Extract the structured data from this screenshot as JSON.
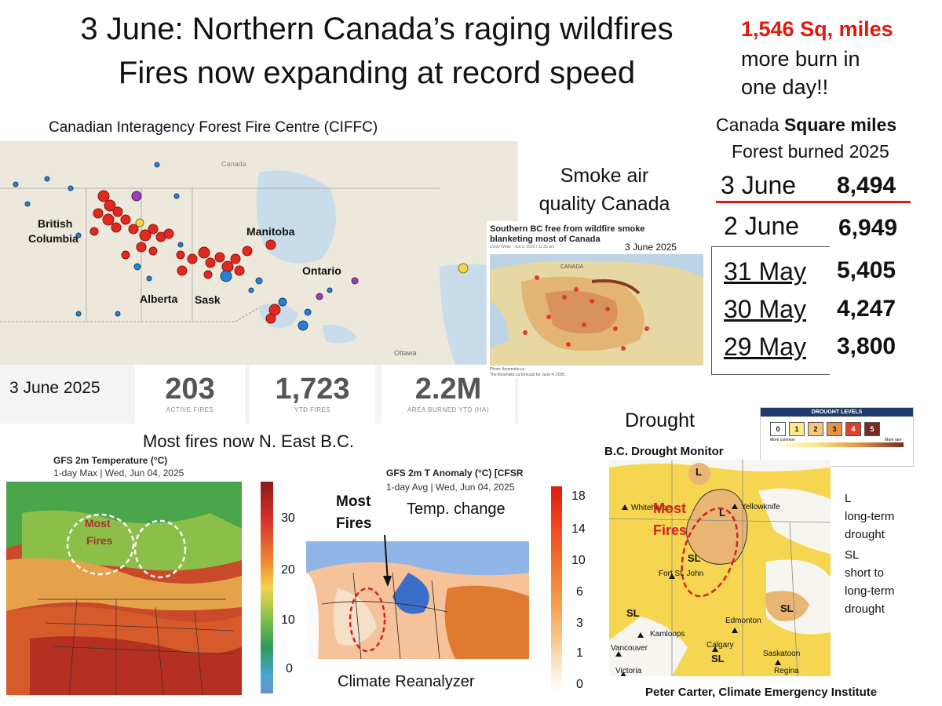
{
  "title": {
    "line1": "3 June: Northern Canada’s raging wildfires",
    "line2": "Fires now expanding at record speed"
  },
  "highlight": {
    "value": "1,546 Sq, miles",
    "line1": "more burn in",
    "line2": "one day!!"
  },
  "ciffc": {
    "caption": "Canadian Interagency Forest Fire Centre  (CIFFC)",
    "map_labels": {
      "canada": "Canada",
      "british": "British",
      "columbia": "Columbia",
      "manitoba": "Manitoba",
      "ontario": "Ontario",
      "alberta": "Alberta",
      "sask": "Sask",
      "ottawa": "Ottawa"
    },
    "date": "3 June 2025",
    "stats": [
      {
        "value": "203",
        "label": "ACTIVE FIRES"
      },
      {
        "value": "1,723",
        "label": "YTD FIRES"
      },
      {
        "value": "2.2M",
        "label": "AREA BURNED YTD (HA)"
      }
    ]
  },
  "smoke": {
    "caption_line1": "Smoke air",
    "caption_line2": "quality Canada",
    "headline": "Southern BC free from wildfire smoke blanketing most of Canada",
    "byline": "Cindy White · Jun 3, 2025 / 11:35 am",
    "date": "3 June 2025",
    "map_label": "CANADA",
    "credit1": "Photo: firesmoke.ca",
    "credit2": "The firesmoke.ca forecast for June 4, 2025."
  },
  "burned": {
    "header_prefix": "Canada ",
    "header_bold": "Square miles",
    "subheader": "Forest burned  2025",
    "rows": [
      {
        "date": "3 June",
        "value": "8,494"
      },
      {
        "date": "2 June",
        "value": "6,949"
      },
      {
        "date": "31 May",
        "value": "5,405"
      },
      {
        "date": "30 May",
        "value": "4,247"
      },
      {
        "date": "29 May",
        "value": "3,800"
      }
    ]
  },
  "temperature": {
    "caption": "Most fires now N. East B.C.",
    "map_title": "GFS 2m Temperature (°C)",
    "map_subtitle": "1-day Max | Wed, Jun 04, 2025",
    "annotation_line1": "Most",
    "annotation_line2": "Fires",
    "scale_ticks": [
      "30",
      "20",
      "10",
      "0"
    ]
  },
  "anomaly": {
    "map_title": "GFS 2m T Anomaly (°C) [CFSR",
    "map_subtitle": "1-day Avg | Wed, Jun 04, 2025",
    "annotation_line1": "Most",
    "annotation_line2": "Fires",
    "temp_change": "Temp. change",
    "credit": "Climate Reanalyzer",
    "scale_ticks": [
      "18",
      "14",
      "10",
      "6",
      "3",
      "1",
      "0"
    ]
  },
  "drought": {
    "caption": "Drought",
    "monitor_title": "B.C. Drought Monitor",
    "legend_title": "DROUGHT LEVELS",
    "levels": [
      "0",
      "1",
      "2",
      "3",
      "4",
      "5"
    ],
    "legend_more_common": "More common",
    "legend_more_rare": "More rare",
    "annotation_line1": "Most",
    "annotation_line2": "Fires",
    "places": {
      "whitehorse": "Whitehorse",
      "yellowknife": "Yellowknife",
      "fort_st_john": "Fort St. John",
      "kamloops": "Kamloops",
      "vancouver": "Vancouver",
      "victoria": "Victoria",
      "calgary": "Calgary",
      "edmonton": "Edmonton",
      "saskatoon": "Saskatoon",
      "regina": "Regina"
    },
    "map_codes": {
      "l": "L",
      "sl": "SL"
    },
    "key": {
      "l_code": "L",
      "l_line1": "long-term",
      "l_line2": "drought",
      "sl_code": "SL",
      "sl_line1": "short to",
      "sl_line2": "long-term",
      "sl_line3": "drought"
    }
  },
  "credit": "Peter Carter,  Climate Emergency Institute",
  "colors": {
    "accent_red": "#e3170a",
    "fire_red": "#e02a1f",
    "water_blue": "#2a7fd4",
    "drought_yellow": "#f6d651",
    "drought_tan": "#e8b572"
  }
}
